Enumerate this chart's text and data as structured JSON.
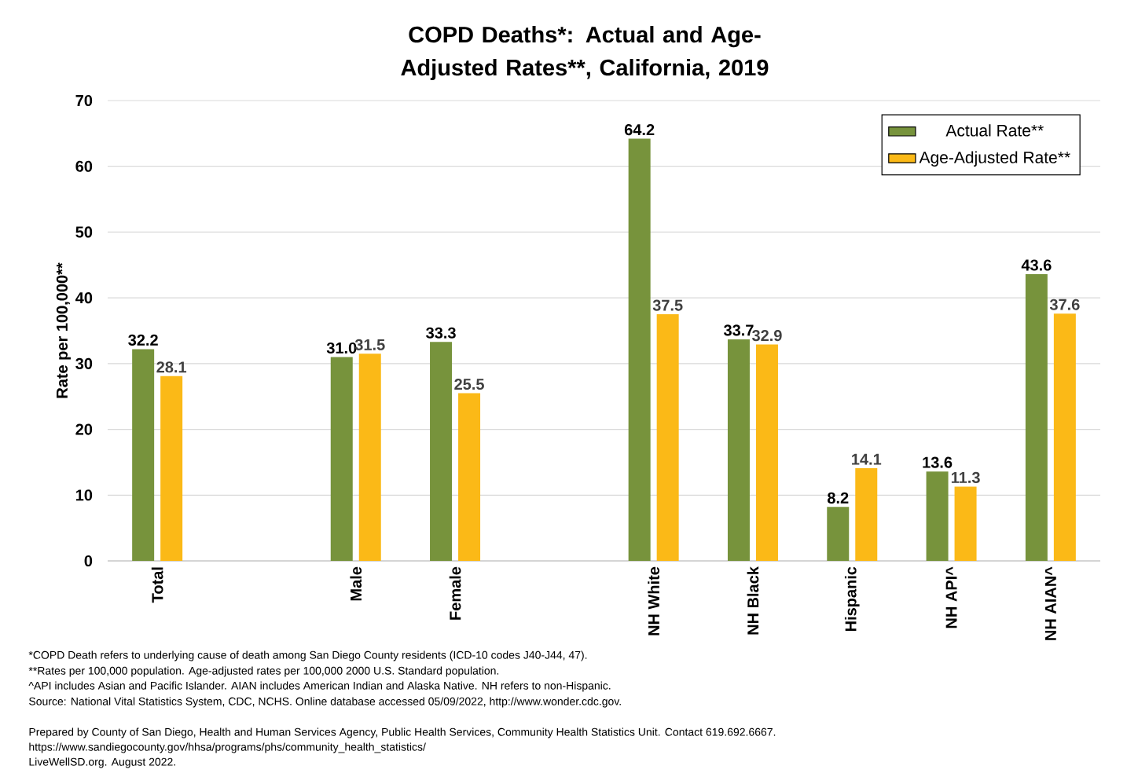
{
  "chart_data": {
    "type": "bar",
    "title": "COPD Deaths*: Actual and Age-Adjusted Rates**, California, 2019",
    "ylabel": "Rate per 100,000**",
    "categories": [
      "Total",
      null,
      "Male",
      "Female",
      null,
      "NH White",
      "NH Black",
      "Hispanic",
      "NH API^",
      "NH AIAN^"
    ],
    "series": [
      {
        "name": "Actual Rate**",
        "color": "#77933c",
        "values": [
          32.2,
          null,
          31.0,
          33.3,
          null,
          64.2,
          33.7,
          8.2,
          13.6,
          43.6
        ],
        "value_labels": [
          "32.2",
          null,
          "31.0",
          "33.3",
          null,
          "64.2",
          "33.7",
          "8.2",
          "13.6",
          "43.6"
        ]
      },
      {
        "name": "Age-Adjusted Rate**",
        "color": "#fbb917",
        "values": [
          28.1,
          null,
          31.5,
          25.5,
          null,
          37.5,
          32.9,
          14.1,
          11.3,
          37.6
        ],
        "value_labels": [
          "28.1",
          null,
          "31.5",
          "25.5",
          null,
          "37.5",
          "32.9",
          "14.1",
          "11.3",
          "37.6"
        ]
      }
    ],
    "ylim": [
      0,
      70
    ],
    "yticks": [
      0,
      10,
      20,
      30,
      40,
      50,
      60,
      70
    ],
    "grid": "y",
    "legend": "top right",
    "annotations": [
      "*COPD Death refers to underlying cause of death among San Diego County residents (ICD-10 codes J40-J44, 47).",
      "**Rates per 100,000 population. Age-adjusted rates per 100,000 2000 U.S. Standard population.",
      "^API includes Asian and Pacific Islander. AIAN includes American Indian and Alaska Native. NH refers to non-Hispanic.",
      "Source: National Vital Statistics System, CDC, NCHS. Online database accessed 05/09/2022, http://www.wonder.cdc.gov.",
      "Prepared by County of San Diego, Health and Human Services Agency, Public Health Services, Community Health Statistics Unit. Contact 619.692.6667.",
      "https://www.sandiegocounty.gov/hhsa/programs/phs/community_health_statistics/",
      "LiveWellSD.org. August 2022."
    ]
  }
}
